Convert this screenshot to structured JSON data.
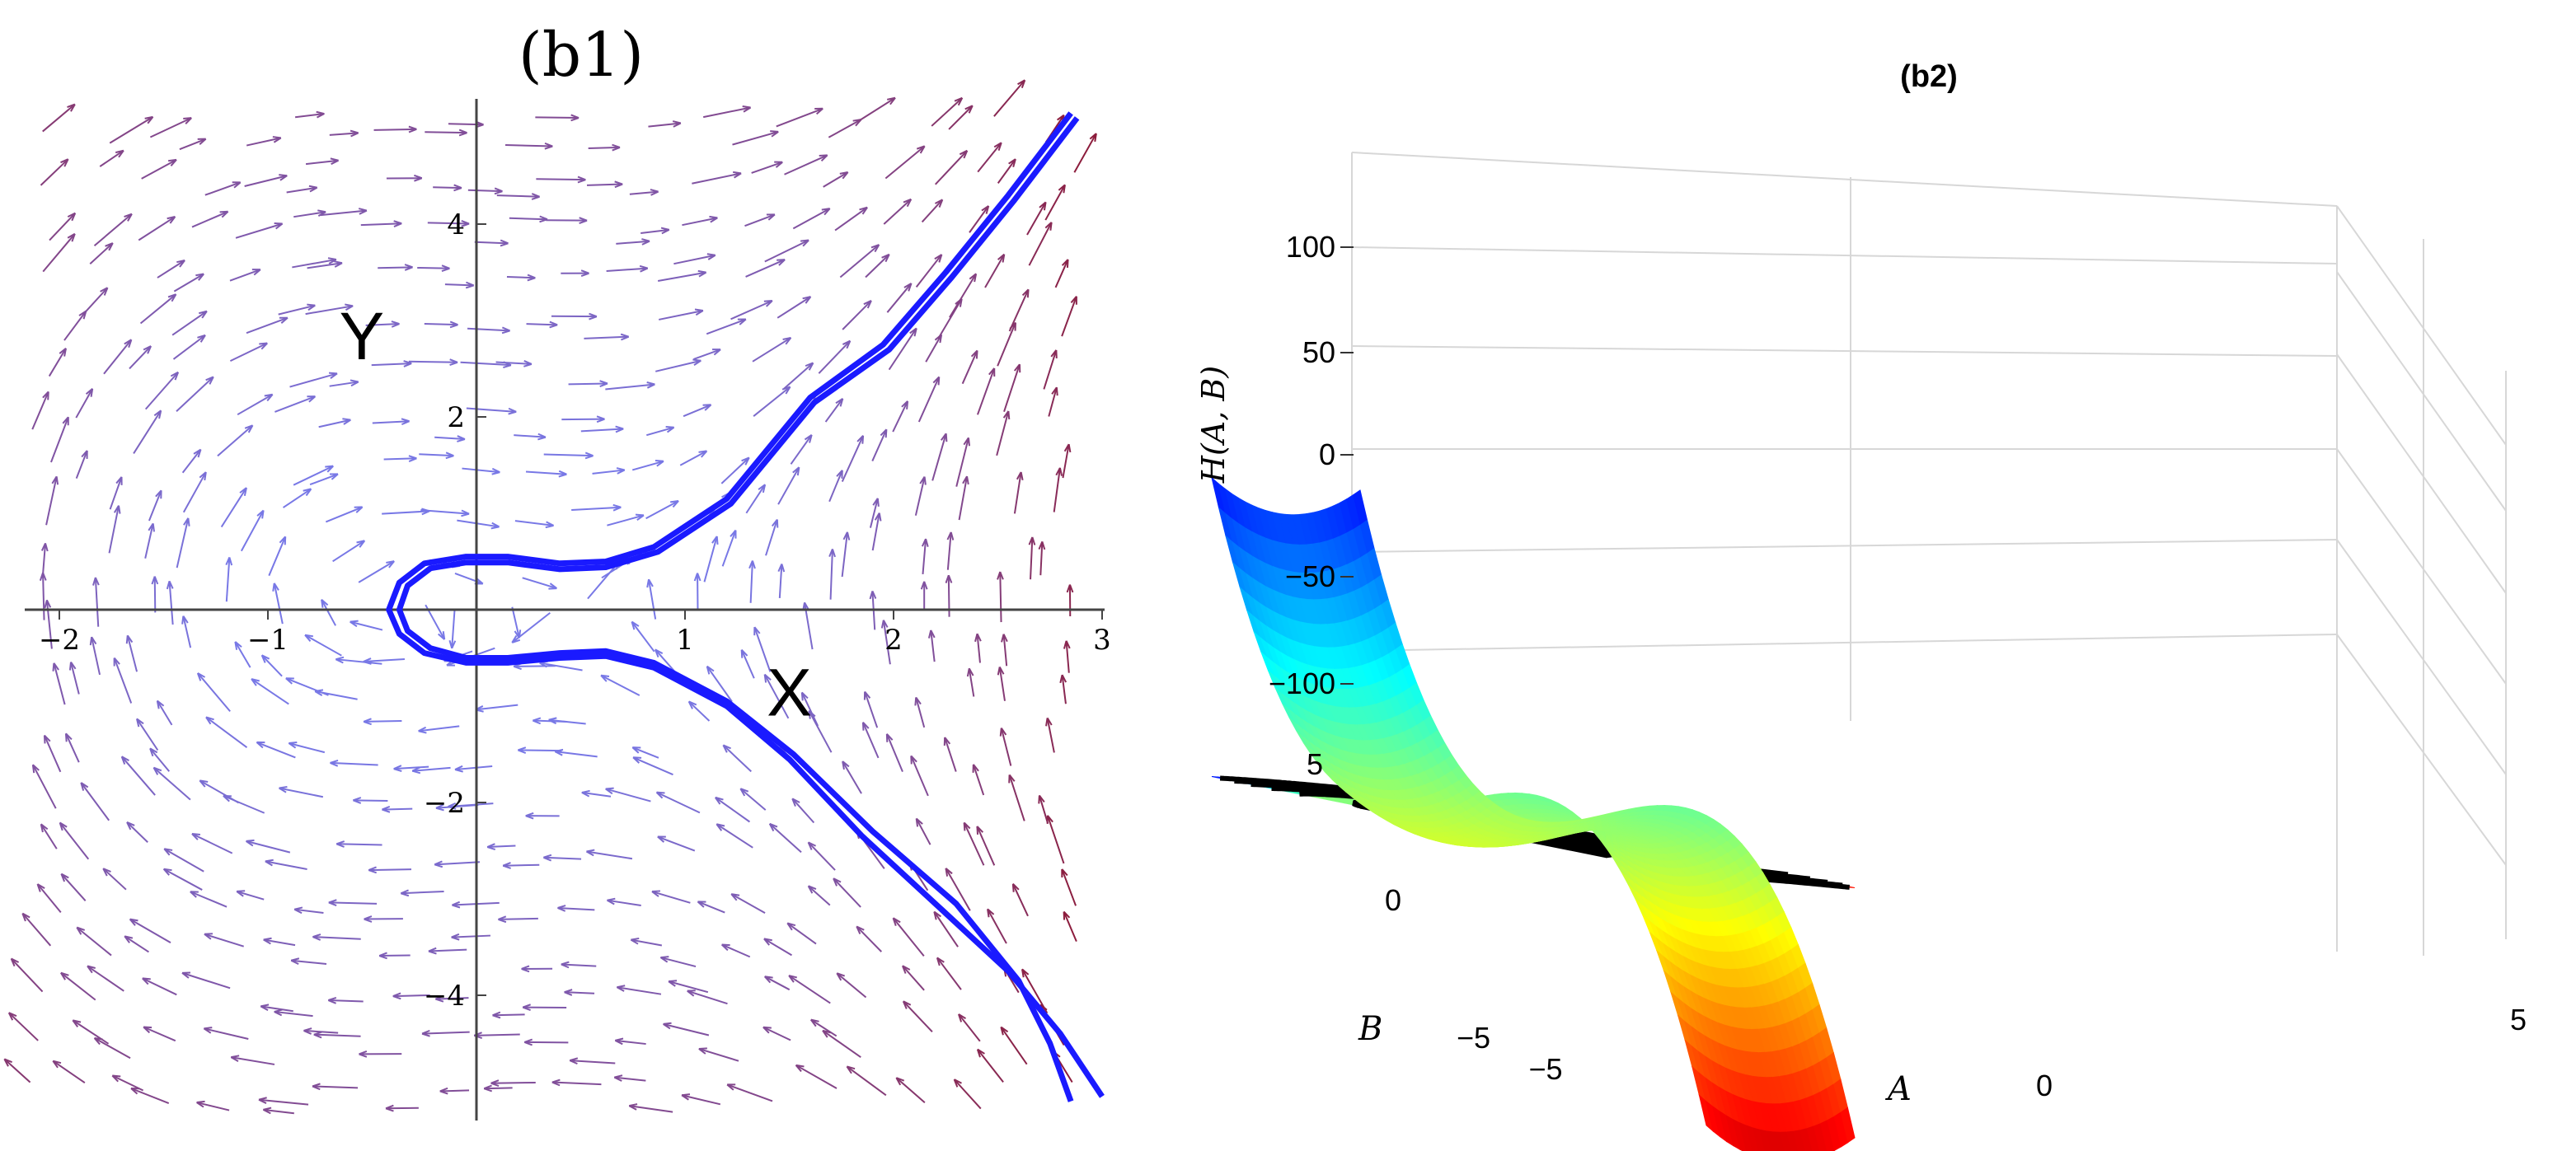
{
  "chart_data": [
    {
      "panel": "b1",
      "type": "vector_field_with_curve",
      "title": "(b1)",
      "xlim": [
        -2.2,
        3.05
      ],
      "ylim": [
        -5.3,
        5.3
      ],
      "x_ticks": [
        {
          "v": -2,
          "label": "−2"
        },
        {
          "v": -1,
          "label": "−1"
        },
        {
          "v": 1,
          "label": "1"
        },
        {
          "v": 2,
          "label": "2"
        },
        {
          "v": 3,
          "label": "3"
        }
      ],
      "y_ticks": [
        {
          "v": 4,
          "label": "4"
        },
        {
          "v": 2,
          "label": "2"
        },
        {
          "v": -2,
          "label": "−2"
        },
        {
          "v": -4,
          "label": "−4"
        }
      ],
      "point_labels": [
        {
          "text": "Y",
          "x": -0.55,
          "y": 2.6
        },
        {
          "text": "X",
          "x": 1.5,
          "y": -1.1
        }
      ],
      "curve": {
        "color": "#1a1aff",
        "branches": [
          [
            [
              2.85,
              5.15
            ],
            [
              2.55,
              4.3
            ],
            [
              2.25,
              3.5
            ],
            [
              1.95,
              2.75
            ],
            [
              1.6,
              2.2
            ],
            [
              1.2,
              1.15
            ],
            [
              0.85,
              0.65
            ],
            [
              0.62,
              0.5
            ],
            [
              0.4,
              0.48
            ],
            [
              0.15,
              0.55
            ],
            [
              -0.05,
              0.55
            ],
            [
              -0.25,
              0.48
            ],
            [
              -0.37,
              0.28
            ],
            [
              -0.42,
              0.0
            ],
            [
              -0.37,
              -0.25
            ],
            [
              -0.25,
              -0.45
            ],
            [
              -0.05,
              -0.55
            ],
            [
              0.15,
              -0.55
            ],
            [
              0.4,
              -0.5
            ],
            [
              0.62,
              -0.48
            ],
            [
              0.85,
              -0.6
            ],
            [
              1.2,
              -1.0
            ],
            [
              1.5,
              -1.55
            ],
            [
              1.85,
              -2.35
            ],
            [
              2.2,
              -3.05
            ],
            [
              2.55,
              -3.75
            ],
            [
              2.8,
              -4.4
            ],
            [
              3.0,
              -5.05
            ]
          ],
          [
            [
              2.88,
              5.1
            ],
            [
              2.58,
              4.25
            ],
            [
              2.28,
              3.45
            ],
            [
              1.98,
              2.7
            ],
            [
              1.62,
              2.15
            ],
            [
              1.22,
              1.1
            ],
            [
              0.87,
              0.6
            ],
            [
              0.62,
              0.44
            ],
            [
              0.4,
              0.42
            ],
            [
              0.15,
              0.49
            ],
            [
              -0.05,
              0.49
            ],
            [
              -0.22,
              0.43
            ],
            [
              -0.33,
              0.25
            ],
            [
              -0.37,
              0.0
            ],
            [
              -0.33,
              -0.22
            ],
            [
              -0.22,
              -0.4
            ],
            [
              -0.05,
              -0.5
            ],
            [
              0.15,
              -0.5
            ],
            [
              0.4,
              -0.45
            ],
            [
              0.62,
              -0.43
            ],
            [
              0.85,
              -0.55
            ],
            [
              1.2,
              -0.95
            ],
            [
              1.52,
              -1.5
            ],
            [
              1.9,
              -2.3
            ],
            [
              2.3,
              -3.05
            ],
            [
              2.6,
              -3.85
            ],
            [
              2.75,
              -4.5
            ],
            [
              2.85,
              -5.1
            ]
          ]
        ]
      },
      "vector_field": {
        "description_colors": {
          "low": "#8080ff",
          "high": "#8b1a3a"
        }
      }
    },
    {
      "panel": "b2",
      "type": "surface3d_with_contour",
      "title": "(b2)",
      "zlabel": "H(A, B)",
      "xlabel": "A",
      "ylabel": "B",
      "z_ticks": [
        {
          "v": 100,
          "label": "100"
        },
        {
          "v": 50,
          "label": "50"
        },
        {
          "v": 0,
          "label": "0"
        },
        {
          "v": -50,
          "label": "−50"
        },
        {
          "v": -100,
          "label": "−100"
        }
      ],
      "a_ticks": [
        {
          "v": -5,
          "label": "−5"
        },
        {
          "v": 0,
          "label": "0"
        },
        {
          "v": 5,
          "label": "5"
        }
      ],
      "b_ticks": [
        {
          "v": 5,
          "label": "5"
        },
        {
          "v": 0,
          "label": "0"
        },
        {
          "v": -5,
          "label": "−5"
        }
      ],
      "a_range": [
        -5,
        5
      ],
      "b_range": [
        -5,
        5
      ],
      "z_range": [
        -110,
        130
      ],
      "colormap": "jet",
      "contour_levels": 14
    }
  ]
}
